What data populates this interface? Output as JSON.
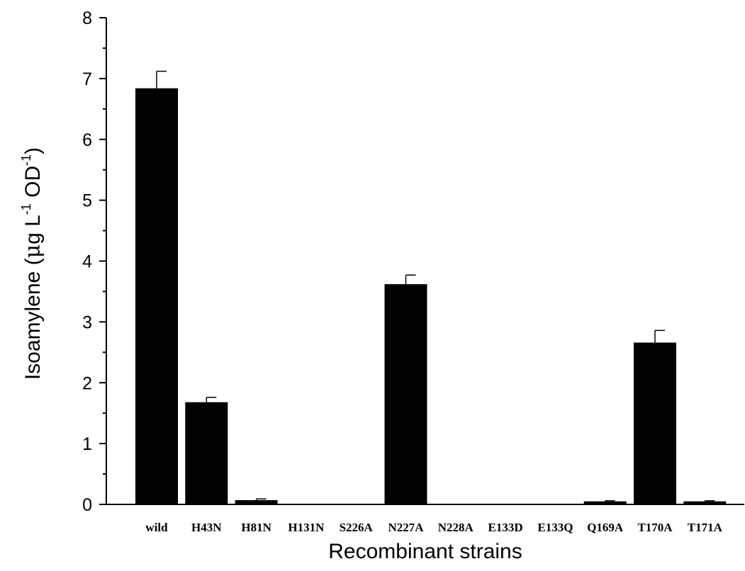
{
  "chart_data": {
    "type": "bar",
    "categories": [
      "wild",
      "H43N",
      "H81N",
      "H131N",
      "S226A",
      "N227A",
      "N228A",
      "E133D",
      "E133Q",
      "Q169A",
      "T170A",
      "T171A"
    ],
    "series": [
      {
        "values": [
          6.84,
          1.68,
          0.07,
          0,
          0,
          3.62,
          0,
          0,
          0,
          0.05,
          2.66,
          0.05
        ],
        "errors": [
          0.28,
          0.08,
          0.02,
          0,
          0,
          0.15,
          0,
          0,
          0,
          0.01,
          0.2,
          0.01
        ]
      }
    ],
    "title": "",
    "xlabel": "Recombinant strains",
    "ylabel": {
      "text_1": "Isoamylene (",
      "mu": "μ",
      "text_2": "g L",
      "sup_1": "-1",
      "text_3": " OD",
      "sup_2": "-1",
      "text_4": ")"
    },
    "ylim": [
      0,
      8
    ],
    "yticks": [
      "0",
      "1",
      "2",
      "3",
      "4",
      "5",
      "6",
      "7",
      "8"
    ],
    "grid": false,
    "legend": "none",
    "bar_color": "#000000"
  }
}
